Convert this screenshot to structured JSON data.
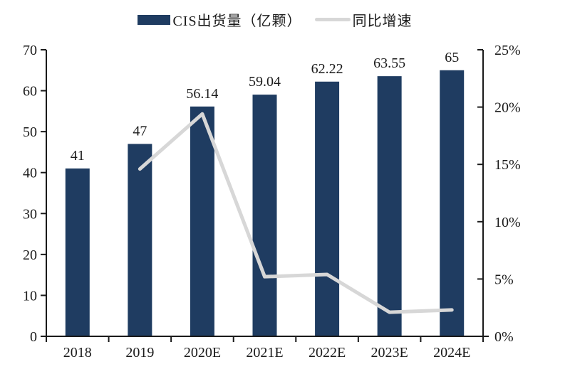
{
  "page": {
    "background": "#ffffff"
  },
  "chart_data": {
    "type": "bar+line",
    "title": "",
    "categories": [
      "2018",
      "2019",
      "2020E",
      "2021E",
      "2022E",
      "2023E",
      "2024E"
    ],
    "series": [
      {
        "name": "CIS出货量（亿颗）",
        "type": "bar",
        "axis": "left",
        "color": "#1f3c61",
        "values": [
          41,
          47,
          56.14,
          59.04,
          62.22,
          63.55,
          65
        ],
        "data_labels": [
          "41",
          "47",
          "56.14",
          "59.04",
          "62.22",
          "63.55",
          "65"
        ]
      },
      {
        "name": "同比增速",
        "type": "line",
        "axis": "right",
        "color": "#d7d7d7",
        "values_percent": [
          null,
          14.6,
          19.4,
          5.2,
          5.4,
          2.1,
          2.3
        ]
      }
    ],
    "left_axis": {
      "min": 0,
      "max": 70,
      "step": 10,
      "tick_labels": [
        "0",
        "10",
        "20",
        "30",
        "40",
        "50",
        "60",
        "70"
      ]
    },
    "right_axis": {
      "min": 0,
      "max": 25,
      "step": 5,
      "unit": "%",
      "tick_labels": [
        "0%",
        "5%",
        "10%",
        "15%",
        "20%",
        "25%"
      ]
    },
    "grid": false,
    "legend_position": "top",
    "axis_color": "#1a1a1a",
    "text_color": "#1a1a1a"
  }
}
